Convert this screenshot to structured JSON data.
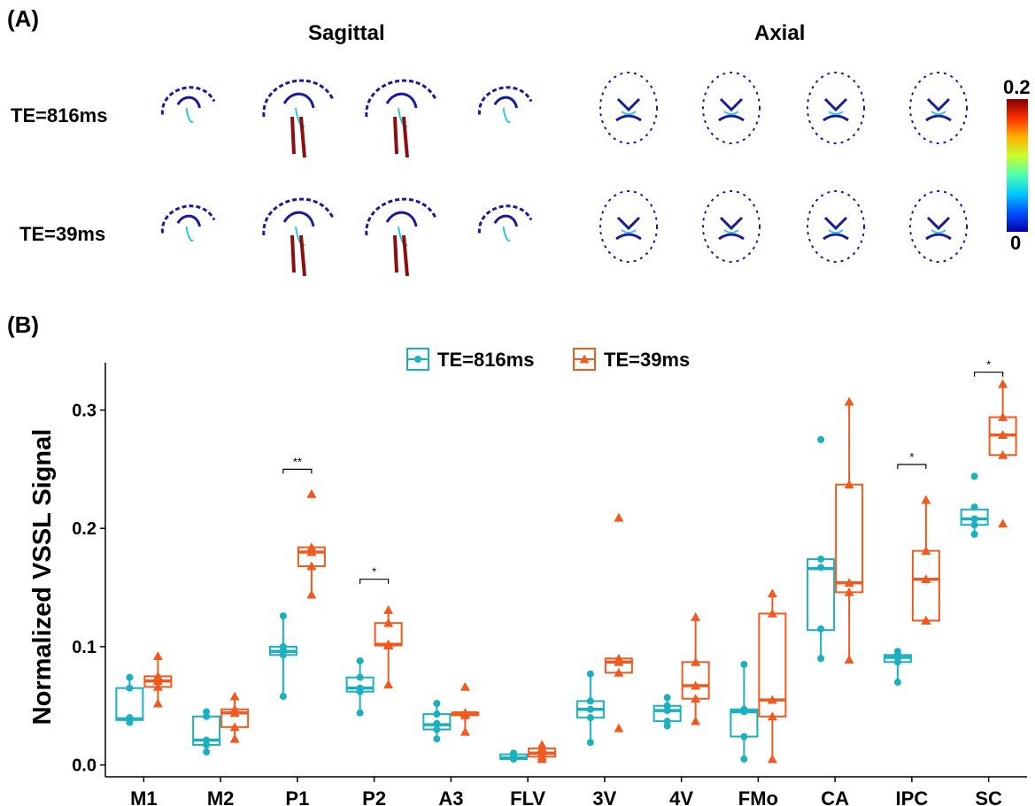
{
  "panelA": {
    "label": "(A)",
    "views": [
      "Sagittal",
      "Axial"
    ],
    "rows": [
      "TE=816ms",
      "TE=39ms"
    ],
    "colorbar": {
      "max": "0.2",
      "min": "0",
      "colors": [
        "#0000aa",
        "#0050ff",
        "#00c8ff",
        "#50ffaa",
        "#c8ff30",
        "#ffb000",
        "#ff3000",
        "#800000"
      ]
    }
  },
  "panelB": {
    "label": "(B)"
  },
  "chart_data": {
    "type": "box",
    "ylabel": "Normalized VSSL Signal",
    "xlabel": "",
    "ylim": [
      -0.01,
      0.34
    ],
    "yticks": [
      "0.0",
      "0.1",
      "0.2",
      "0.3"
    ],
    "ytick_values": [
      0.0,
      0.1,
      0.2,
      0.3
    ],
    "categories": [
      "M1",
      "M2",
      "P1",
      "P2",
      "A3",
      "FLV",
      "3V",
      "4V",
      "FMo",
      "CA",
      "IPC",
      "SC"
    ],
    "legend_position": "top",
    "series": [
      {
        "name": "TE=816ms",
        "color": "#1bb0c0",
        "marker": "circle",
        "boxes": [
          {
            "min": 0.036,
            "q1": 0.038,
            "median": 0.039,
            "q3": 0.065,
            "max": 0.074,
            "points": [
              0.036,
              0.038,
              0.04,
              0.065,
              0.074
            ]
          },
          {
            "min": 0.011,
            "q1": 0.017,
            "median": 0.021,
            "q3": 0.041,
            "max": 0.045,
            "points": [
              0.011,
              0.017,
              0.021,
              0.041,
              0.045
            ]
          },
          {
            "min": 0.058,
            "q1": 0.093,
            "median": 0.096,
            "q3": 0.1,
            "max": 0.126,
            "points": [
              0.058,
              0.093,
              0.097,
              0.1,
              0.126
            ]
          },
          {
            "min": 0.044,
            "q1": 0.062,
            "median": 0.065,
            "q3": 0.074,
            "max": 0.088,
            "points": [
              0.044,
              0.062,
              0.065,
              0.074,
              0.088
            ]
          },
          {
            "min": 0.022,
            "q1": 0.03,
            "median": 0.034,
            "q3": 0.043,
            "max": 0.052,
            "points": [
              0.022,
              0.03,
              0.035,
              0.043,
              0.052
            ]
          },
          {
            "min": 0.005,
            "q1": 0.005,
            "median": 0.006,
            "q3": 0.009,
            "max": 0.01,
            "points": [
              0.005,
              0.006,
              0.007,
              0.009,
              0.01
            ]
          },
          {
            "min": 0.019,
            "q1": 0.04,
            "median": 0.047,
            "q3": 0.054,
            "max": 0.077,
            "points": [
              0.019,
              0.04,
              0.047,
              0.054,
              0.077
            ]
          },
          {
            "min": 0.033,
            "q1": 0.037,
            "median": 0.046,
            "q3": 0.05,
            "max": 0.057,
            "points": [
              0.033,
              0.037,
              0.046,
              0.05,
              0.057
            ]
          },
          {
            "min": 0.005,
            "q1": 0.024,
            "median": 0.045,
            "q3": 0.047,
            "max": 0.085,
            "points": [
              0.005,
              0.024,
              0.045,
              0.047,
              0.085
            ]
          },
          {
            "min": 0.09,
            "q1": 0.114,
            "median": 0.166,
            "q3": 0.174,
            "max": 0.174,
            "points": [
              0.09,
              0.115,
              0.167,
              0.174,
              0.275
            ]
          },
          {
            "min": 0.07,
            "q1": 0.087,
            "median": 0.091,
            "q3": 0.093,
            "max": 0.096,
            "points": [
              0.07,
              0.087,
              0.091,
              0.093,
              0.096
            ]
          },
          {
            "min": 0.195,
            "q1": 0.203,
            "median": 0.208,
            "q3": 0.216,
            "max": 0.216,
            "points": [
              0.195,
              0.203,
              0.208,
              0.218,
              0.244
            ]
          }
        ]
      },
      {
        "name": "TE=39ms",
        "color": "#f05a1e",
        "marker": "triangle",
        "boxes": [
          {
            "min": 0.052,
            "q1": 0.066,
            "median": 0.071,
            "q3": 0.075,
            "max": 0.092,
            "points": [
              0.052,
              0.066,
              0.071,
              0.075,
              0.092
            ]
          },
          {
            "min": 0.022,
            "q1": 0.032,
            "median": 0.044,
            "q3": 0.047,
            "max": 0.058,
            "points": [
              0.022,
              0.032,
              0.044,
              0.047,
              0.058
            ]
          },
          {
            "min": 0.144,
            "q1": 0.168,
            "median": 0.18,
            "q3": 0.184,
            "max": 0.184,
            "points": [
              0.144,
              0.168,
              0.18,
              0.184,
              0.229
            ]
          },
          {
            "min": 0.068,
            "q1": 0.101,
            "median": 0.102,
            "q3": 0.12,
            "max": 0.131,
            "points": [
              0.068,
              0.101,
              0.102,
              0.12,
              0.131
            ]
          },
          {
            "min": 0.028,
            "q1": 0.042,
            "median": 0.044,
            "q3": 0.044,
            "max": 0.044,
            "points": [
              0.028,
              0.042,
              0.044,
              0.044,
              0.066
            ]
          },
          {
            "min": 0.005,
            "q1": 0.007,
            "median": 0.01,
            "q3": 0.014,
            "max": 0.017,
            "points": [
              0.005,
              0.007,
              0.01,
              0.014,
              0.017
            ]
          },
          {
            "min": 0.078,
            "q1": 0.078,
            "median": 0.087,
            "q3": 0.09,
            "max": 0.09,
            "points": [
              0.031,
              0.078,
              0.087,
              0.09,
              0.209
            ]
          },
          {
            "min": 0.037,
            "q1": 0.056,
            "median": 0.067,
            "q3": 0.087,
            "max": 0.125,
            "points": [
              0.037,
              0.056,
              0.067,
              0.087,
              0.125
            ]
          },
          {
            "min": 0.005,
            "q1": 0.041,
            "median": 0.055,
            "q3": 0.128,
            "max": 0.145,
            "points": [
              0.005,
              0.041,
              0.055,
              0.128,
              0.145
            ]
          },
          {
            "min": 0.089,
            "q1": 0.146,
            "median": 0.154,
            "q3": 0.237,
            "max": 0.307,
            "points": [
              0.089,
              0.146,
              0.154,
              0.237,
              0.307
            ]
          },
          {
            "min": 0.122,
            "q1": 0.122,
            "median": 0.157,
            "q3": 0.181,
            "max": 0.224,
            "points": [
              0.122,
              0.122,
              0.157,
              0.181,
              0.224
            ]
          },
          {
            "min": 0.262,
            "q1": 0.262,
            "median": 0.279,
            "q3": 0.294,
            "max": 0.322,
            "points": [
              0.204,
              0.262,
              0.279,
              0.294,
              0.322
            ]
          }
        ]
      }
    ],
    "annotations": [
      {
        "category": "P1",
        "label": "**",
        "y": 0.25
      },
      {
        "category": "P2",
        "label": "*",
        "y": 0.157
      },
      {
        "category": "IPC",
        "label": "*",
        "y": 0.254
      },
      {
        "category": "SC",
        "label": "*",
        "y": 0.332
      }
    ]
  }
}
